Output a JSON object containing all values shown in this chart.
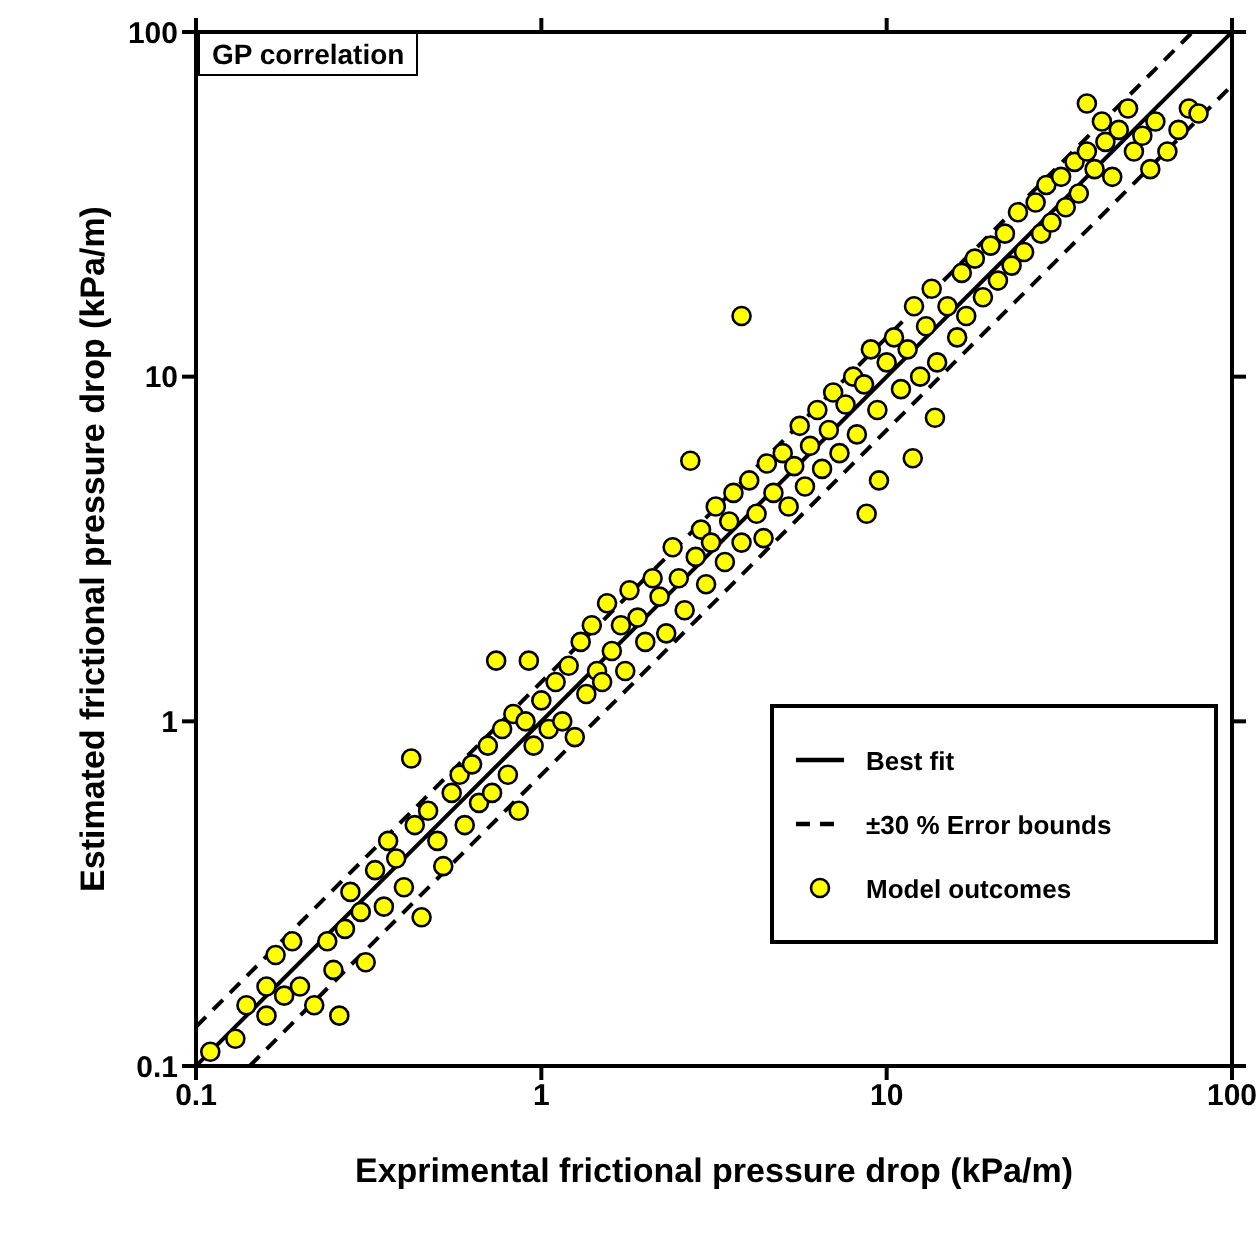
{
  "chart_data": {
    "type": "scatter",
    "xlabel": "Exprimental frictional pressure drop (kPa/m)",
    "ylabel": "Estimated frictional pressure drop (kPa/m)",
    "annotations": [
      "GP correlation"
    ],
    "log": "xy",
    "xlim": [
      0.1,
      100
    ],
    "ylim": [
      0.1,
      100
    ],
    "xticks": [
      0.1,
      1,
      10,
      100
    ],
    "yticks": [
      0.1,
      1,
      10,
      100
    ],
    "grid": false,
    "legend": "bottom right",
    "series": [
      {
        "name": "Best fit",
        "type": "line",
        "line_style": "solid",
        "color": "#000000",
        "x": [
          0.1,
          100
        ],
        "values": [
          0.1,
          100
        ]
      },
      {
        "name": "±30 % Error bounds",
        "type": "line",
        "line_style": "dashed",
        "color": "#000000",
        "x": [
          0.1,
          76.9
        ],
        "values": [
          0.13,
          100
        ]
      },
      {
        "type": "line",
        "line_style": "dashed",
        "color": "#000000",
        "x": [
          0.143,
          100
        ],
        "values": [
          0.1,
          70
        ]
      },
      {
        "name": "Model outcomes",
        "marker": "circle",
        "color": "#ffff00",
        "x": [
          0.11,
          0.13,
          0.14,
          0.16,
          0.16,
          0.17,
          0.18,
          0.19,
          0.2,
          0.22,
          0.24,
          0.25,
          0.26,
          0.27,
          0.28,
          0.3,
          0.31,
          0.33,
          0.35,
          0.36,
          0.38,
          0.4,
          0.42,
          0.43,
          0.45,
          0.47,
          0.5,
          0.52,
          0.55,
          0.58,
          0.6,
          0.63,
          0.66,
          0.7,
          0.72,
          0.74,
          0.77,
          0.8,
          0.83,
          0.86,
          0.9,
          0.92,
          0.95,
          1.0,
          1.05,
          1.1,
          1.15,
          1.2,
          1.25,
          1.3,
          1.35,
          1.4,
          1.45,
          1.5,
          1.55,
          1.6,
          1.7,
          1.75,
          1.8,
          1.9,
          2.0,
          2.1,
          2.2,
          2.3,
          2.4,
          2.5,
          2.6,
          2.7,
          2.8,
          2.9,
          3.0,
          3.1,
          3.2,
          3.4,
          3.5,
          3.6,
          3.8,
          3.8,
          4.0,
          4.2,
          4.4,
          4.5,
          4.7,
          5.0,
          5.2,
          5.4,
          5.6,
          5.8,
          6.0,
          6.3,
          6.5,
          6.8,
          7.0,
          7.3,
          7.6,
          8.0,
          8.2,
          8.75,
          8.6,
          9.0,
          9.5,
          9.4,
          10,
          10.5,
          11,
          11.5,
          11.9,
          12,
          12.5,
          13,
          13.8,
          13.5,
          14,
          15,
          16,
          16.5,
          17,
          18,
          19,
          20,
          21,
          22,
          23,
          24,
          25,
          27,
          28,
          29,
          30,
          32,
          33,
          35,
          36,
          38,
          38,
          40,
          42,
          43,
          45,
          47,
          50,
          52,
          55,
          58,
          60,
          65,
          70,
          75,
          80
        ],
        "values": [
          0.11,
          0.12,
          0.15,
          0.17,
          0.14,
          0.21,
          0.16,
          0.23,
          0.17,
          0.15,
          0.23,
          0.19,
          0.14,
          0.25,
          0.32,
          0.28,
          0.2,
          0.37,
          0.29,
          0.45,
          0.4,
          0.33,
          0.78,
          0.5,
          0.27,
          0.55,
          0.45,
          0.38,
          0.62,
          0.7,
          0.5,
          0.75,
          0.58,
          0.85,
          0.62,
          1.5,
          0.95,
          0.7,
          1.05,
          0.55,
          1.0,
          1.5,
          0.85,
          1.15,
          0.95,
          1.3,
          1.0,
          1.45,
          0.9,
          1.7,
          1.2,
          1.9,
          1.4,
          1.3,
          2.2,
          1.6,
          1.9,
          1.4,
          2.4,
          2.0,
          1.7,
          2.6,
          2.3,
          1.8,
          3.2,
          2.6,
          2.1,
          5.7,
          3.0,
          3.6,
          2.5,
          3.3,
          4.2,
          2.9,
          3.8,
          4.6,
          15,
          3.3,
          5.0,
          4.0,
          3.4,
          5.6,
          4.6,
          6.0,
          4.2,
          5.5,
          7.2,
          4.8,
          6.3,
          8.0,
          5.4,
          7.0,
          9.0,
          6.0,
          8.3,
          10,
          6.8,
          4.0,
          9.5,
          12,
          5.0,
          8.0,
          11,
          13,
          9.2,
          12,
          5.8,
          16,
          10,
          14,
          7.6,
          18,
          11,
          16,
          13,
          20,
          15,
          22,
          17,
          24,
          19,
          26,
          21,
          30,
          23,
          32,
          26,
          36,
          28,
          38,
          31,
          42,
          34,
          62,
          45,
          40,
          55,
          48,
          38,
          52,
          60,
          45,
          50,
          40,
          55,
          45,
          52,
          60,
          58
        ]
      }
    ]
  }
}
